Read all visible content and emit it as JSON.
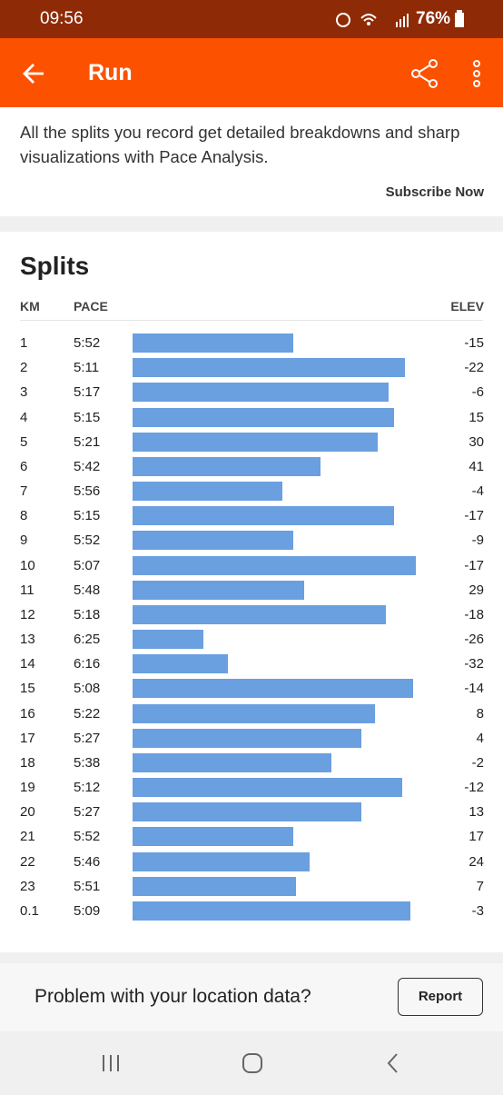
{
  "status_bar": {
    "time": "09:56",
    "battery": "76%"
  },
  "header": {
    "title": "Run"
  },
  "promo": {
    "text": "All the splits you record get detailed breakdowns and sharp visualizations with Pace Analysis.",
    "action": "Subscribe Now"
  },
  "splits": {
    "title": "Splits",
    "columns": [
      "KM",
      "PACE",
      "ELEV"
    ],
    "rows": [
      [
        1,
        "5:52",
        -15
      ],
      [
        2,
        "5:11",
        -22
      ],
      [
        3,
        "5:17",
        -6
      ],
      [
        4,
        "5:15",
        15
      ],
      [
        5,
        "5:21",
        30
      ],
      [
        6,
        "5:42",
        41
      ],
      [
        7,
        "5:56",
        -4
      ],
      [
        8,
        "5:15",
        -17
      ],
      [
        9,
        "5:52",
        -9
      ],
      [
        10,
        "5:07",
        -17
      ],
      [
        11,
        "5:48",
        29
      ],
      [
        12,
        "5:18",
        -18
      ],
      [
        13,
        "6:25",
        -26
      ],
      [
        14,
        "6:16",
        -32
      ],
      [
        15,
        "5:08",
        -14
      ],
      [
        16,
        "5:22",
        8
      ],
      [
        17,
        "5:27",
        4
      ],
      [
        18,
        "5:38",
        -2
      ],
      [
        19,
        "5:12",
        -12
      ],
      [
        20,
        "5:27",
        13
      ],
      [
        21,
        "5:52",
        17
      ],
      [
        22,
        "5:46",
        24
      ],
      [
        23,
        "5:51",
        7
      ],
      [
        0.1,
        "5:09",
        -3
      ]
    ]
  },
  "footer": {
    "text": "Problem with your location data?",
    "button": "Report"
  }
}
